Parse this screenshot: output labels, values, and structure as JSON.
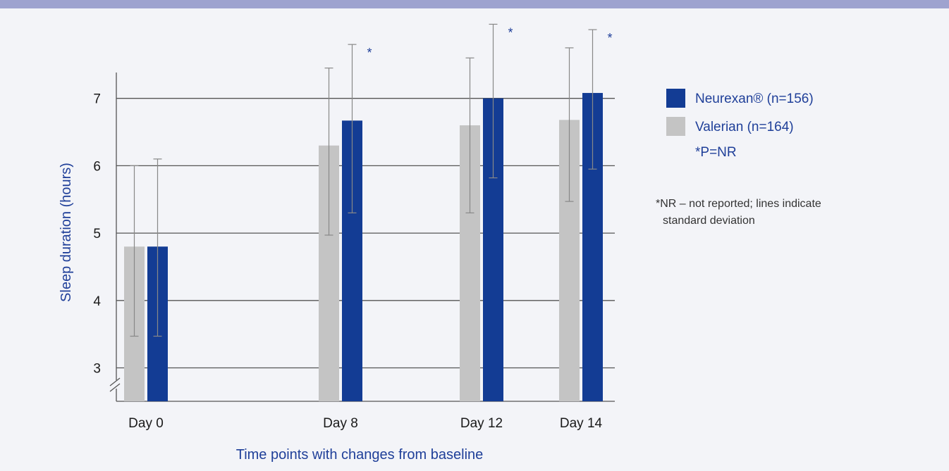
{
  "colors": {
    "stripe": "#9ea3cf",
    "background": "#f3f4f8",
    "neurexan": "#133c94",
    "valerian": "#c4c4c4",
    "title_blue": "#1f3f99",
    "grid": "#555555",
    "error_bar": "#888888"
  },
  "chart_data": {
    "type": "bar",
    "categories": [
      "Day 0",
      "Day 8",
      "Day 12",
      "Day 14"
    ],
    "series": [
      {
        "name": "Valerian (n=164)",
        "values": [
          4.8,
          6.3,
          6.6,
          6.68
        ],
        "error_bars": [
          [
            3.47,
            6.0
          ],
          [
            4.97,
            7.45
          ],
          [
            5.3,
            7.6
          ],
          [
            5.47,
            7.75
          ]
        ]
      },
      {
        "name": "Neurexan® (n=156)",
        "values": [
          4.8,
          6.67,
          7.0,
          7.08
        ],
        "error_bars": [
          [
            3.47,
            6.1
          ],
          [
            5.3,
            7.8
          ],
          [
            5.82,
            8.1
          ],
          [
            5.95,
            8.02
          ]
        ]
      }
    ],
    "significance": [
      "",
      "*",
      "*",
      "*"
    ],
    "xlabel": "Time points with changes from baseline",
    "ylabel": "Sleep duration (hours)",
    "yticks": [
      3,
      4,
      5,
      6,
      7
    ],
    "ylim": [
      2.6,
      8.3
    ],
    "axis_break": true,
    "grid": "horizontal",
    "legend_position": "right",
    "legend_note": "*P=NR",
    "footnote_lines": [
      "*NR – not reported; lines indicate",
      "standard deviation"
    ]
  }
}
